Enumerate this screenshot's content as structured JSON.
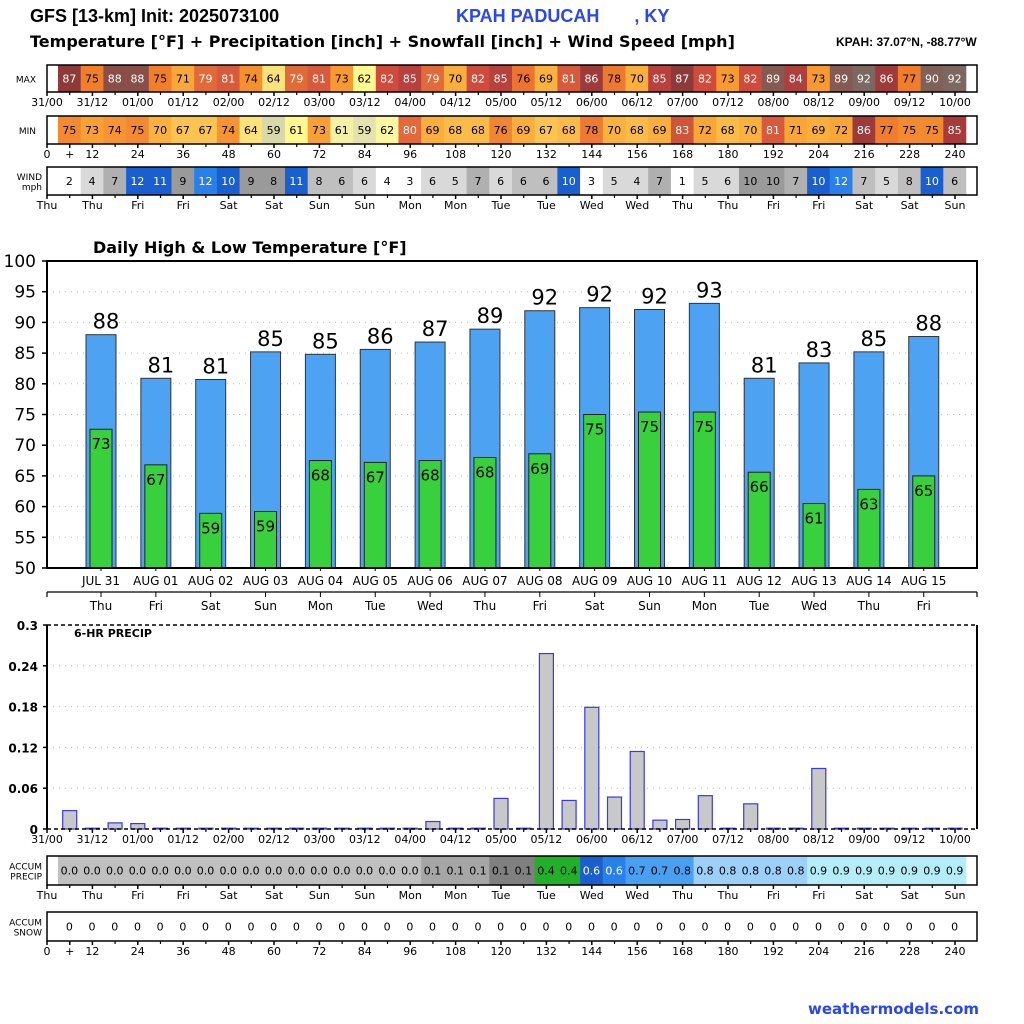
{
  "header": {
    "title": "GFS [13-km] Init: 2025073100",
    "station": "KPAH PADUCAH       , KY",
    "subtitle": "Temperature [°F] + Precipitation [inch] + Snowfall [inch] + Wind Speed [mph]",
    "coords": "KPAH: 37.07°N, -88.77°W"
  },
  "footer": {
    "brand": "weathermodels.com"
  },
  "strips": {
    "max": {
      "label": "MAX",
      "values": [
        87,
        75,
        88,
        88,
        75,
        71,
        79,
        81,
        74,
        64,
        79,
        81,
        73,
        62,
        82,
        85,
        79,
        70,
        82,
        85,
        76,
        69,
        81,
        86,
        78,
        70,
        85,
        87,
        82,
        73,
        82,
        89,
        84,
        73,
        89,
        92,
        86,
        77,
        90,
        92
      ],
      "colors": [
        "#8e3a3a",
        "#f07f2a",
        "#8a4e48",
        "#8a4e48",
        "#f07f2a",
        "#f9a73a",
        "#e06a38",
        "#d85a3c",
        "#f4902e",
        "#fce27a",
        "#e06a38",
        "#d85a3c",
        "#f79a32",
        "#fdf88f",
        "#cf4c3d",
        "#b8403d",
        "#e06a38",
        "#faae3c",
        "#cf4c3d",
        "#b8403d",
        "#eb7530",
        "#f9b23e",
        "#d85a3c",
        "#9e3a3a",
        "#ec7a2e",
        "#faae3c",
        "#b8403d",
        "#8e3a3a",
        "#cf4c3d",
        "#f79a32",
        "#cf4c3d",
        "#845a52",
        "#ad3f3c",
        "#f79a32",
        "#845a52",
        "#7c6861",
        "#9e3a3a",
        "#ef7d2c",
        "#7f6158",
        "#7c6861"
      ],
      "ticks": [
        "31/00",
        "31/12",
        "01/00",
        "01/12",
        "02/00",
        "02/12",
        "03/00",
        "03/12",
        "04/00",
        "04/12",
        "05/00",
        "05/12",
        "06/00",
        "06/12",
        "07/00",
        "07/12",
        "08/00",
        "08/12",
        "09/00",
        "09/12",
        "10/00"
      ]
    },
    "min": {
      "label": "MIN",
      "values": [
        75,
        73,
        74,
        75,
        70,
        67,
        67,
        74,
        64,
        59,
        61,
        73,
        61,
        59,
        62,
        80,
        69,
        68,
        68,
        76,
        69,
        67,
        68,
        78,
        70,
        68,
        69,
        83,
        72,
        68,
        70,
        81,
        71,
        69,
        72,
        86,
        77,
        75,
        75,
        85
      ],
      "colors": [
        "#f48a30",
        "#f7a034",
        "#f69434",
        "#f48a30",
        "#f9b23e",
        "#fbc452",
        "#fbc452",
        "#f69434",
        "#fce27a",
        "#d9d8a8",
        "#fdf88f",
        "#f7a034",
        "#f4f0a4",
        "#e5e2b0",
        "#fdf6a0",
        "#e4683a",
        "#faae3c",
        "#fbbb48",
        "#fbbb48",
        "#f28530",
        "#faae3c",
        "#fbc452",
        "#fbbb48",
        "#ee7a32",
        "#f9b23e",
        "#fbbb48",
        "#faae3c",
        "#cf5538",
        "#f8a636",
        "#fbbb48",
        "#f9b23e",
        "#d85a3c",
        "#f8a636",
        "#faae3c",
        "#f8a636",
        "#9e3a3a",
        "#ef7d2c",
        "#f48a30",
        "#f48a30",
        "#a93a3a"
      ],
      "ticks": [
        "0",
        "+",
        "12",
        "24",
        "36",
        "48",
        "60",
        "72",
        "84",
        "96",
        "108",
        "120",
        "132",
        "144",
        "156",
        "168",
        "180",
        "192",
        "204",
        "216",
        "228",
        "240"
      ]
    },
    "wind": {
      "label_line1": "WIND",
      "label_line2": "mph",
      "values": [
        2,
        4,
        7,
        12,
        11,
        9,
        12,
        10,
        9,
        8,
        11,
        8,
        6,
        6,
        4,
        3,
        6,
        5,
        7,
        6,
        6,
        6,
        10,
        3,
        5,
        4,
        7,
        1,
        5,
        6,
        10,
        10,
        7,
        10,
        12,
        7,
        5,
        8,
        10,
        6
      ],
      "colors": [
        "#ffffff",
        "#d9d9d9",
        "#b0b0b0",
        "#1a5fd0",
        "#1a5fd0",
        "#9a9a9a",
        "#2a80ea",
        "#1a5fd0",
        "#9a9a9a",
        "#9a9a9a",
        "#1a5fd0",
        "#bfbfbf",
        "#bfbfbf",
        "#d9d9d9",
        "#ffffff",
        "#ffffff",
        "#d9d9d9",
        "#d9d9d9",
        "#b0b0b0",
        "#d9d9d9",
        "#bfbfbf",
        "#bfbfbf",
        "#1a5fd0",
        "#ffffff",
        "#d9d9d9",
        "#d9d9d9",
        "#b0b0b0",
        "#ffffff",
        "#d9d9d9",
        "#d9d9d9",
        "#9a9a9a",
        "#9a9a9a",
        "#b0b0b0",
        "#1a5fd0",
        "#2a80ea",
        "#bfbfbf",
        "#d9d9d9",
        "#bfbfbf",
        "#1a5fd0",
        "#bfbfbf"
      ],
      "ticks": [
        "Thu",
        "Thu",
        "Fri",
        "Fri",
        "Sat",
        "Sat",
        "Sun",
        "Sun",
        "Mon",
        "Mon",
        "Tue",
        "Tue",
        "Wed",
        "Wed",
        "Thu",
        "Thu",
        "Fri",
        "Fri",
        "Sat",
        "Sat",
        "Sun"
      ]
    },
    "accum_precip": {
      "label_line1": "ACCUM",
      "label_line2": "PRECIP",
      "values": [
        "0.0",
        "0.0",
        "0.0",
        "0.0",
        "0.0",
        "0.0",
        "0.0",
        "0.0",
        "0.0",
        "0.0",
        "0.0",
        "0.0",
        "0.0",
        "0.0",
        "0.0",
        "0.0",
        "0.1",
        "0.1",
        "0.1",
        "0.1",
        "0.1",
        "0.4",
        "0.4",
        "0.6",
        "0.6",
        "0.7",
        "0.7",
        "0.8",
        "0.8",
        "0.8",
        "0.8",
        "0.8",
        "0.8",
        "0.9",
        "0.9",
        "0.9",
        "0.9",
        "0.9",
        "0.9",
        "0.9"
      ],
      "colors": [
        "#c0c0c0",
        "#c0c0c0",
        "#c0c0c0",
        "#c0c0c0",
        "#c0c0c0",
        "#c0c0c0",
        "#c0c0c0",
        "#c0c0c0",
        "#c0c0c0",
        "#c0c0c0",
        "#c0c0c0",
        "#c0c0c0",
        "#c0c0c0",
        "#c0c0c0",
        "#c0c0c0",
        "#c0c0c0",
        "#a6a6a6",
        "#a6a6a6",
        "#a6a6a6",
        "#808080",
        "#808080",
        "#22b02a",
        "#22b02a",
        "#1a5fd0",
        "#2a80ea",
        "#4aa0f0",
        "#4aa0f0",
        "#4aa0f0",
        "#9cd0f8",
        "#9cd0f8",
        "#9cd0f8",
        "#9cd0f8",
        "#9cd0f8",
        "#b4ecf8",
        "#b4ecf8",
        "#b4ecf8",
        "#b4ecf8",
        "#b4ecf8",
        "#b4ecf8",
        "#b4ecf8"
      ],
      "text_colors": [
        "#000",
        "#000",
        "#000",
        "#000",
        "#000",
        "#000",
        "#000",
        "#000",
        "#000",
        "#000",
        "#000",
        "#000",
        "#000",
        "#000",
        "#000",
        "#000",
        "#000",
        "#000",
        "#000",
        "#000",
        "#000",
        "#000",
        "#000",
        "#fff",
        "#fff",
        "#000",
        "#000",
        "#000",
        "#000",
        "#000",
        "#000",
        "#000",
        "#000",
        "#000",
        "#000",
        "#000",
        "#000",
        "#000",
        "#000",
        "#000"
      ],
      "ticks": [
        "Thu",
        "Thu",
        "Fri",
        "Fri",
        "Sat",
        "Sat",
        "Sun",
        "Sun",
        "Mon",
        "Mon",
        "Tue",
        "Tue",
        "Wed",
        "Wed",
        "Thu",
        "Thu",
        "Fri",
        "Fri",
        "Sat",
        "Sat",
        "Sun"
      ]
    },
    "accum_snow": {
      "label_line1": "ACCUM",
      "label_line2": "SNOW",
      "values": [
        "0",
        "0",
        "0",
        "0",
        "0",
        "0",
        "0",
        "0",
        "0",
        "0",
        "0",
        "0",
        "0",
        "0",
        "0",
        "0",
        "0",
        "0",
        "0",
        "0",
        "0",
        "0",
        "0",
        "0",
        "0",
        "0",
        "0",
        "0",
        "0",
        "0",
        "0",
        "0",
        "0",
        "0",
        "0",
        "0",
        "0",
        "0",
        "0",
        "0"
      ],
      "ticks": [
        "0",
        "+",
        "12",
        "24",
        "36",
        "48",
        "60",
        "72",
        "84",
        "96",
        "108",
        "120",
        "132",
        "144",
        "156",
        "168",
        "180",
        "192",
        "204",
        "216",
        "228",
        "240"
      ]
    }
  },
  "chart_data": [
    {
      "type": "bar",
      "title": "Daily High & Low Temperature [°F]",
      "categories": [
        "JUL 31",
        "AUG 01",
        "AUG 02",
        "AUG 03",
        "AUG 04",
        "AUG 05",
        "AUG 06",
        "AUG 07",
        "AUG 08",
        "AUG 09",
        "AUG 10",
        "AUG 11",
        "AUG 12",
        "AUG 13",
        "AUG 14",
        "AUG 15"
      ],
      "weekdays": [
        "Thu",
        "Fri",
        "Sat",
        "Sun",
        "Mon",
        "Tue",
        "Wed",
        "Thu",
        "Fri",
        "Sat",
        "Sun",
        "Mon",
        "Tue",
        "Wed",
        "Thu",
        "Fri"
      ],
      "series": [
        {
          "name": "High",
          "color": "#4da3f2",
          "values": [
            88.0,
            80.9,
            80.7,
            85.2,
            84.8,
            85.6,
            86.8,
            88.9,
            91.9,
            92.4,
            92.1,
            93.1,
            80.9,
            83.4,
            85.2,
            87.7
          ],
          "labels": [
            "88",
            "81",
            "81",
            "85",
            "85",
            "86",
            "87",
            "89",
            "92",
            "92",
            "92",
            "93",
            "81",
            "83",
            "85",
            "88"
          ]
        },
        {
          "name": "Low",
          "color": "#38d03c",
          "values": [
            72.6,
            66.8,
            58.9,
            59.2,
            67.5,
            67.2,
            67.5,
            68.0,
            68.6,
            75.0,
            75.4,
            75.4,
            65.6,
            60.5,
            62.8,
            65.0
          ],
          "labels": [
            "73",
            "67",
            "59",
            "59",
            "68",
            "67",
            "68",
            "68",
            "69",
            "75",
            "75",
            "75",
            "66",
            "61",
            "63",
            "65"
          ]
        }
      ],
      "ylim": [
        50,
        100
      ],
      "yticks": [
        "50",
        "55",
        "60",
        "65",
        "70",
        "75",
        "80",
        "85",
        "90",
        "95",
        "100"
      ],
      "grid": true,
      "xlabel": "",
      "ylabel": ""
    },
    {
      "type": "bar",
      "title": "6-HR PRECIP",
      "x_hours": [
        6,
        12,
        18,
        24,
        30,
        36,
        42,
        48,
        54,
        60,
        66,
        72,
        78,
        84,
        90,
        96,
        102,
        108,
        114,
        120,
        126,
        132,
        138,
        144,
        150,
        156,
        162,
        168,
        174,
        180,
        186,
        192,
        198,
        204,
        210,
        216,
        222,
        228,
        234,
        240
      ],
      "values": [
        0.027,
        0.0,
        0.009,
        0.008,
        0.0,
        0.0,
        0.0,
        0.0,
        0.0,
        0.0,
        0.0,
        0.0,
        0.0,
        0.0,
        0.0,
        0.0,
        0.011,
        0.001,
        0.0,
        0.045,
        0.0,
        0.258,
        0.042,
        0.179,
        0.047,
        0.114,
        0.013,
        0.014,
        0.049,
        0.0,
        0.037,
        0.0,
        0.0,
        0.089,
        0.0,
        0.0,
        0.0,
        0.0,
        0.0,
        0.0
      ],
      "bar_color": "#c8c8c8",
      "edge_color": "#3a3ae0",
      "ylim": [
        0,
        0.3
      ],
      "yticks": [
        "0",
        "0.06",
        "0.12",
        "0.18",
        "0.24",
        "0.3"
      ],
      "xticks": [
        "31/00",
        "31/12",
        "01/00",
        "01/12",
        "02/00",
        "02/12",
        "03/00",
        "03/12",
        "04/00",
        "04/12",
        "05/00",
        "05/12",
        "06/00",
        "06/12",
        "07/00",
        "07/12",
        "08/00",
        "08/12",
        "09/00",
        "09/12",
        "10/00"
      ],
      "grid": true,
      "xlabel": "",
      "ylabel": ""
    }
  ]
}
